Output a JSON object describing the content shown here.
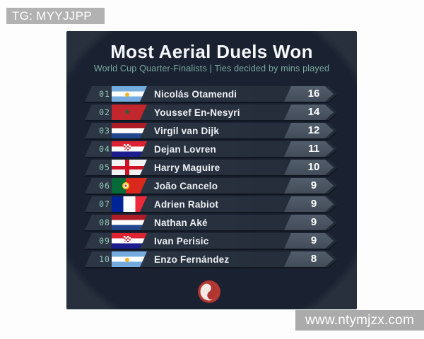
{
  "overlay": {
    "tg_label": "TG: MYYJJPP",
    "watermark": "www.ntymjzx.com"
  },
  "header": {
    "title": "Most Aerial Duels Won",
    "subtitle": "World Cup Quarter-Finalists | Ties decided by mins played"
  },
  "table": {
    "rows": [
      {
        "rank": "01",
        "flag": "argentina",
        "player": "Nicolás Otamendi",
        "value": "16"
      },
      {
        "rank": "02",
        "flag": "morocco",
        "player": "Youssef En-Nesyri",
        "value": "14"
      },
      {
        "rank": "03",
        "flag": "netherlands",
        "player": "Virgil van Dijk",
        "value": "12"
      },
      {
        "rank": "04",
        "flag": "croatia",
        "player": "Dejan Lovren",
        "value": "11"
      },
      {
        "rank": "05",
        "flag": "england",
        "player": "Harry Maguire",
        "value": "10"
      },
      {
        "rank": "06",
        "flag": "portugal",
        "player": "João Cancelo",
        "value": "9"
      },
      {
        "rank": "07",
        "flag": "france",
        "player": "Adrien Rabiot",
        "value": "9"
      },
      {
        "rank": "08",
        "flag": "netherlands",
        "player": "Nathan Aké",
        "value": "9"
      },
      {
        "rank": "09",
        "flag": "croatia",
        "player": "Ivan Perisic",
        "value": "9"
      },
      {
        "rank": "10",
        "flag": "argentina",
        "player": "Enzo Fernández",
        "value": "8"
      }
    ]
  },
  "footer": {
    "logo": "red-swirl-logo"
  },
  "colors": {
    "card_bg": "#1a2130",
    "card_corner": "#28303d",
    "row_bg": "#2d3644",
    "badge_bg": "#4c5663",
    "accent_teal": "#79aba0",
    "rank_teal": "#93cabd",
    "logo_red": "#b03530",
    "chip_gray": "#b2b2b2"
  },
  "chart_data": {
    "type": "table",
    "title": "Most Aerial Duels Won",
    "subtitle": "World Cup Quarter-Finalists | Ties decided by mins played",
    "columns": [
      "rank",
      "country",
      "player",
      "aerial_duels_won"
    ],
    "rows": [
      [
        1,
        "Argentina",
        "Nicolás Otamendi",
        16
      ],
      [
        2,
        "Morocco",
        "Youssef En-Nesyri",
        14
      ],
      [
        3,
        "Netherlands",
        "Virgil van Dijk",
        12
      ],
      [
        4,
        "Croatia",
        "Dejan Lovren",
        11
      ],
      [
        5,
        "England",
        "Harry Maguire",
        10
      ],
      [
        6,
        "Portugal",
        "João Cancelo",
        9
      ],
      [
        7,
        "France",
        "Adrien Rabiot",
        9
      ],
      [
        8,
        "Netherlands",
        "Nathan Aké",
        9
      ],
      [
        9,
        "Croatia",
        "Ivan Perisic",
        9
      ],
      [
        10,
        "Argentina",
        "Enzo Fernández",
        8
      ]
    ]
  }
}
